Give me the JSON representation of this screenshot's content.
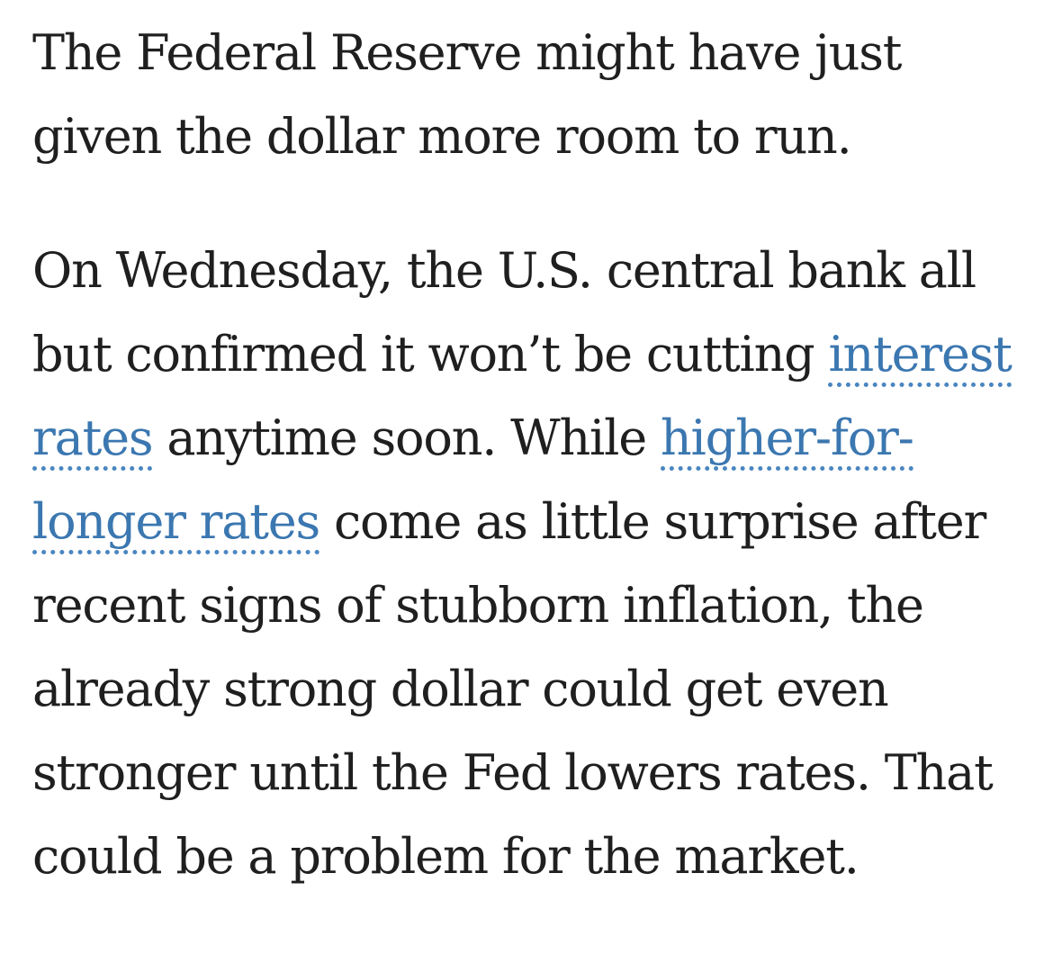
{
  "article": {
    "paragraph1": "The Federal Reserve might have just given the dollar more room to run.",
    "paragraph2": {
      "part1": "On Wednesday, the U.S. central bank all but confirmed it won’t be cutting ",
      "link1": "interest rates",
      "part2": " anytime soon. While ",
      "link2": "higher-for-longer rates",
      "part3": " come as little surprise after recent signs of stubborn inflation, the already strong dollar could get even stronger until the Fed lowers rates. That could be a problem for the market."
    }
  },
  "colors": {
    "text": "#1f1f1f",
    "link": "#3b77b0",
    "background": "#ffffff"
  }
}
